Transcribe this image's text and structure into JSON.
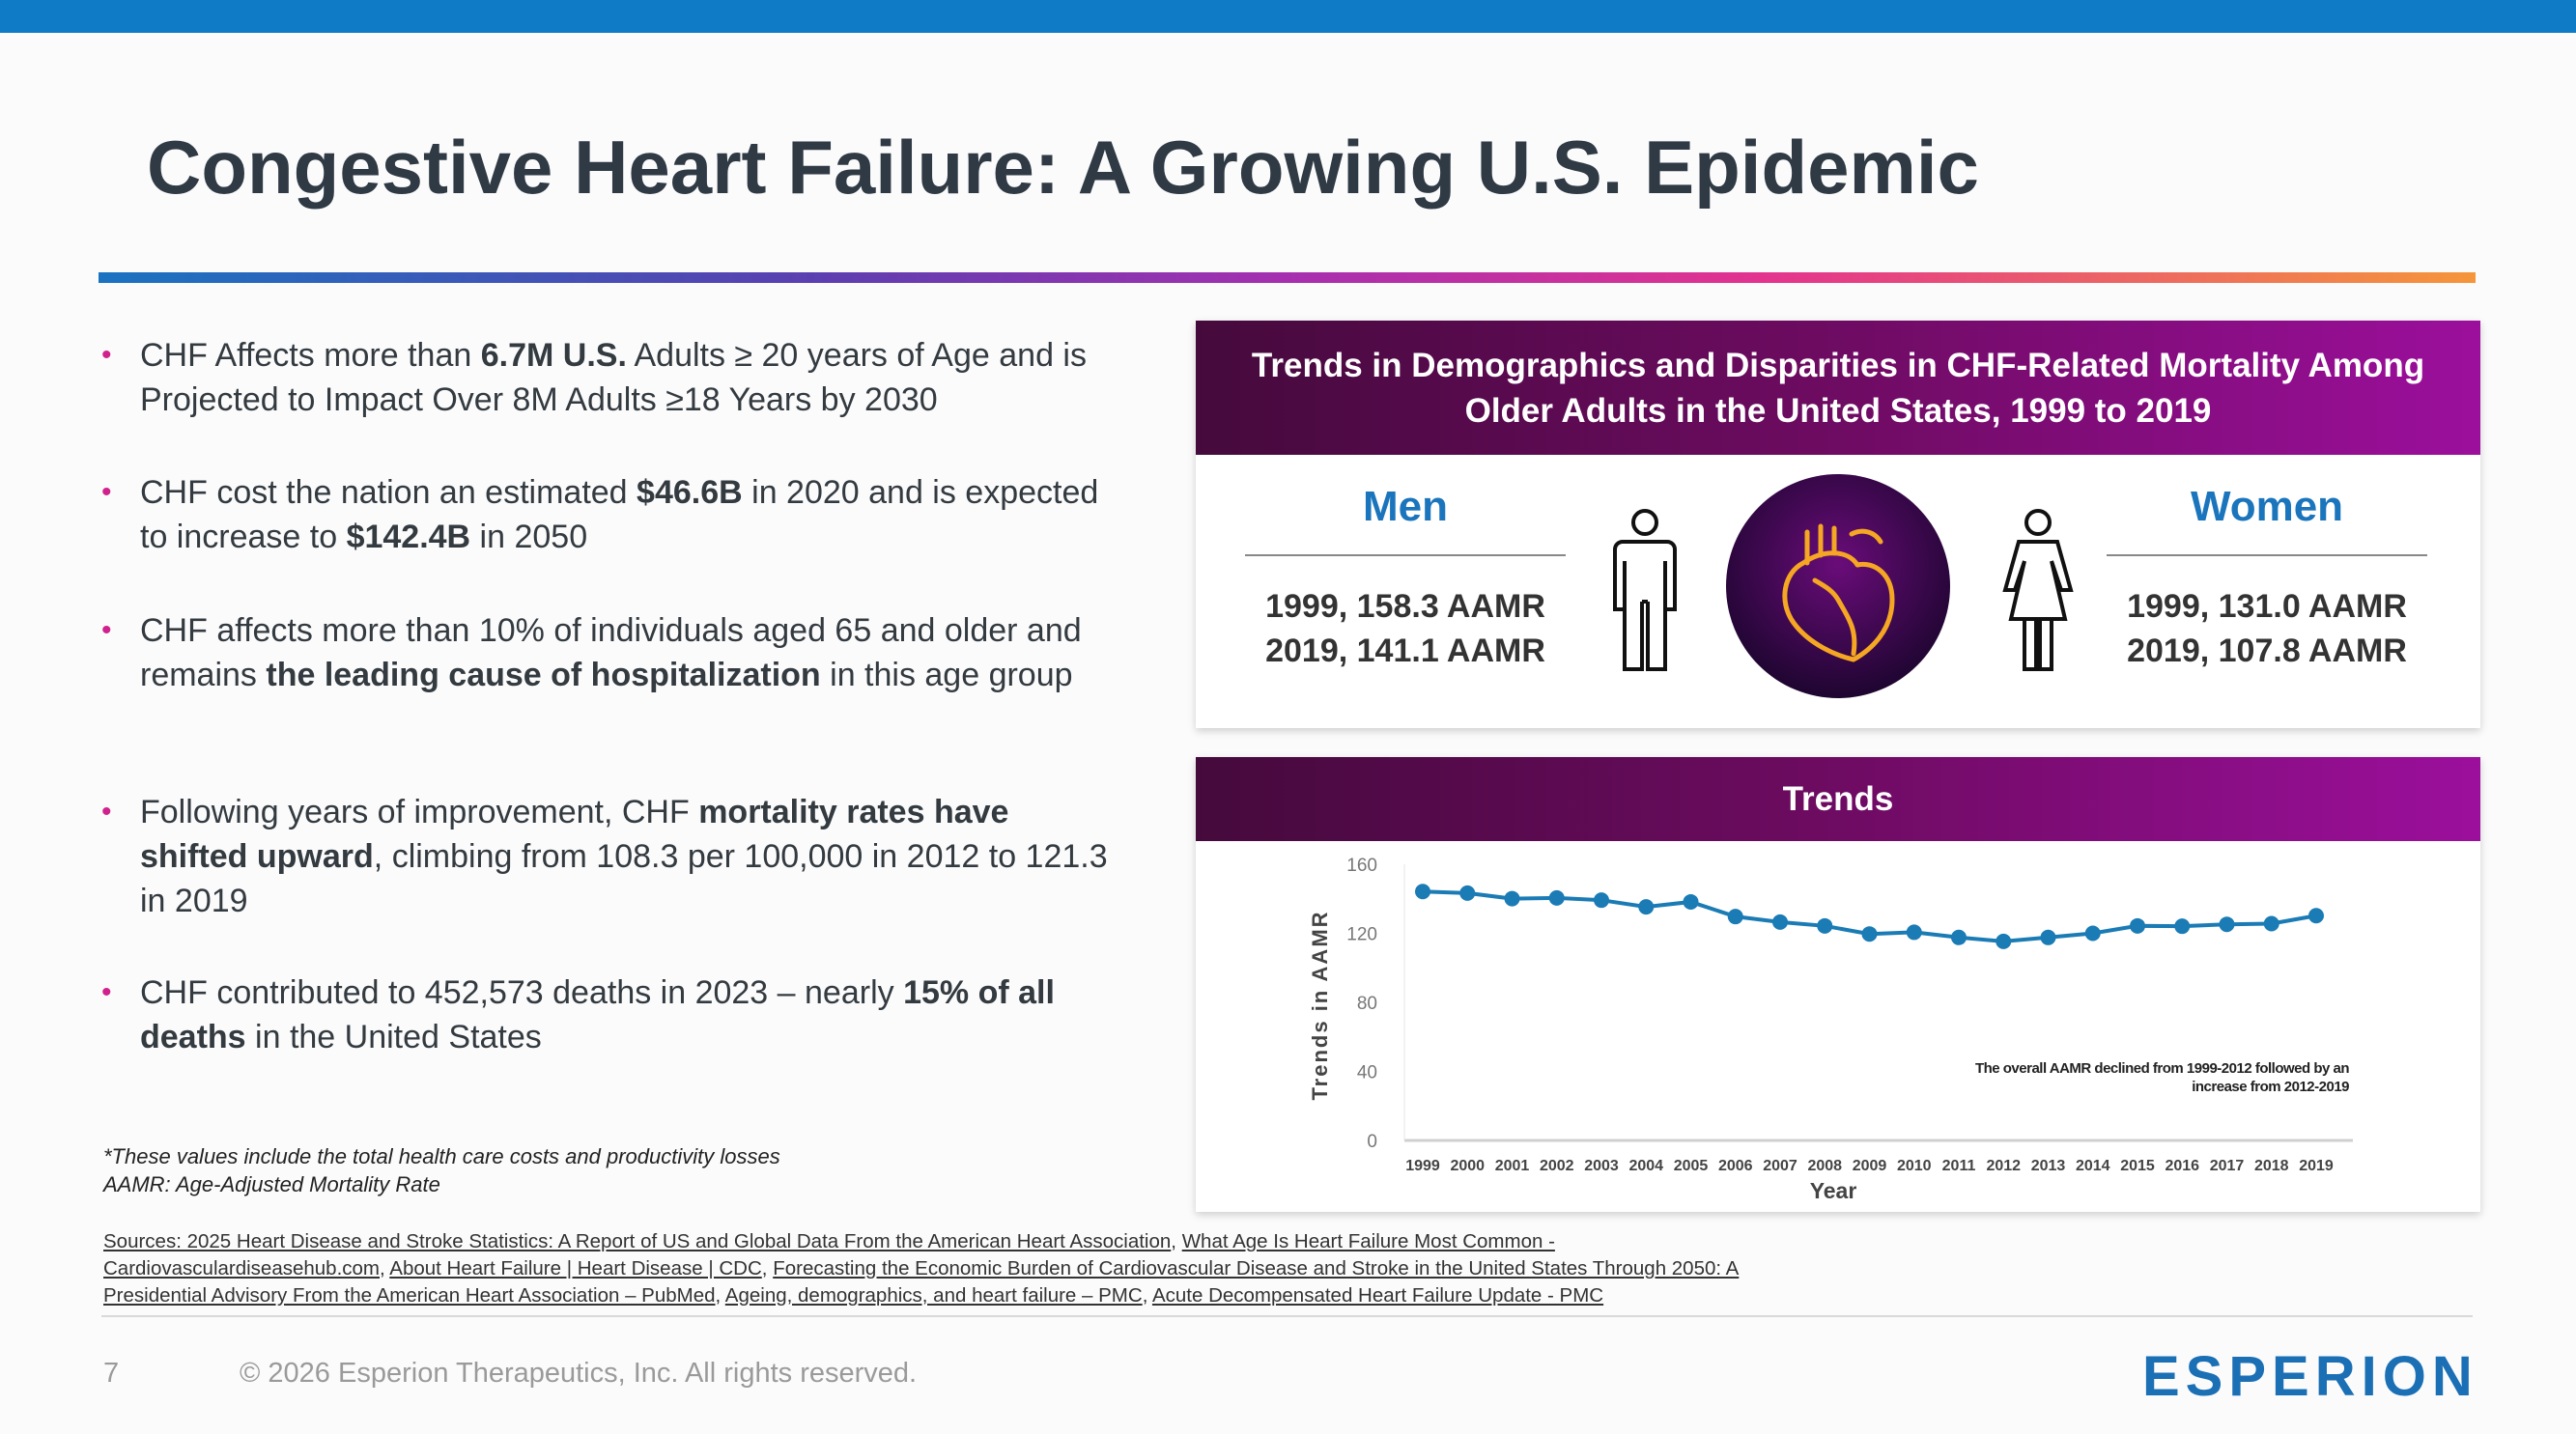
{
  "slide": {
    "title": "Congestive Heart Failure: A Growing U.S. Epidemic",
    "page_number": "7",
    "copyright": "© 2026 Esperion Therapeutics, Inc. All rights reserved.",
    "logo": "ESPERION"
  },
  "bullets": [
    {
      "parts": [
        [
          "CHF Affects more than ",
          false
        ],
        [
          "6.7M U.S.",
          true
        ],
        [
          " Adults ≥ 20 years of Age and is Projected to Impact Over 8M Adults ≥18 Years by 2030",
          false
        ]
      ]
    },
    {
      "parts": [
        [
          "CHF cost the nation an estimated ",
          false
        ],
        [
          "$46.6B",
          true
        ],
        [
          " in 2020 and is expected to increase to ",
          false
        ],
        [
          "$142.4B",
          true
        ],
        [
          " in 2050",
          false
        ]
      ]
    },
    {
      "parts": [
        [
          "CHF affects more than 10% of individuals aged 65 and older and remains ",
          false
        ],
        [
          "the leading cause of hospitalization",
          true
        ],
        [
          " in this age group",
          false
        ]
      ]
    },
    {
      "parts": [
        [
          "Following years of improvement, CHF ",
          false
        ],
        [
          "mortality rates have shifted upward",
          true
        ],
        [
          ", climbing from 108.3 per 100,000 in 2012 to 121.3 in 2019",
          false
        ]
      ]
    },
    {
      "parts": [
        [
          "CHF contributed to 452,573 deaths in 2023 – nearly ",
          false
        ],
        [
          "15% of all deaths",
          true
        ],
        [
          " in the United States",
          false
        ]
      ]
    }
  ],
  "footnotes": [
    "*These values include the total health care costs and productivity losses",
    "AAMR: Age-Adjusted Mortality Rate"
  ],
  "sources": [
    [
      " Sources: 2025 Heart Disease and Stroke Statistics: A Report of US and Global Data From the American Heart Association",
      ", ",
      "What Age Is Heart Failure Most Common -"
    ],
    [
      "Cardiovasculardiseasehub.com",
      ", ",
      "About Heart Failure | Heart Disease | CDC",
      ", ",
      "Forecasting the Economic Burden of Cardiovascular Disease and Stroke in the United States Through 2050: A"
    ],
    [
      "Presidential Advisory From the American Heart Association – PubMed",
      ", ",
      "Ageing, demographics, and heart failure – PMC",
      ", ",
      "Acute Decompensated Heart Failure Update - PMC"
    ]
  ],
  "demographics": {
    "title": "Trends in Demographics and Disparities in CHF-Related Mortality Among Older Adults in the United States, 1999 to 2019",
    "men": {
      "label": "Men",
      "values": [
        "1999, 158.3 AAMR",
        "2019, 141.1 AAMR"
      ]
    },
    "women": {
      "label": "Women",
      "values": [
        "1999, 131.0 AAMR",
        "2019, 107.8 AAMR"
      ]
    },
    "icons": [
      "man-icon",
      "heart-icon",
      "woman-icon"
    ],
    "heart_circle_color": "#5a0a6a",
    "heart_stroke_color": "#f5a623"
  },
  "trends": {
    "title": "Trends"
  },
  "chart_data": {
    "type": "line",
    "xlabel": "Year",
    "ylabel": "Trends in AAMR",
    "ylim": [
      0,
      160
    ],
    "yticks": [
      0,
      40,
      80,
      120,
      160
    ],
    "categories": [
      "1999",
      "2000",
      "2001",
      "2002",
      "2003",
      "2004",
      "2005",
      "2006",
      "2007",
      "2008",
      "2009",
      "2010",
      "2011",
      "2012",
      "2013",
      "2014",
      "2015",
      "2016",
      "2017",
      "2018",
      "2019"
    ],
    "values": [
      144.2,
      143.3,
      140.1,
      140.5,
      139.2,
      135.3,
      138.2,
      129.7,
      126.5,
      124.3,
      119.6,
      120.6,
      117.6,
      115.3,
      117.6,
      120.0,
      124.3,
      124.1,
      125.2,
      125.6,
      130.2
    ],
    "color": "#1a7bb5",
    "annotation": [
      "The overall AAMR declined from 1999-2012 followed by an",
      "increase from 2012-2019"
    ],
    "grid": false
  }
}
